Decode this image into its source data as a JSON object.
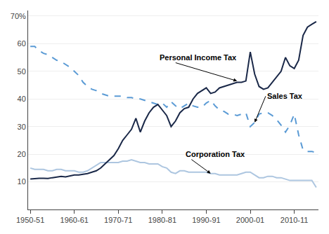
{
  "chart_data": {
    "type": "line",
    "x": [
      1950,
      1951,
      1952,
      1953,
      1954,
      1955,
      1956,
      1957,
      1958,
      1959,
      1960,
      1961,
      1962,
      1963,
      1964,
      1965,
      1966,
      1967,
      1968,
      1969,
      1970,
      1971,
      1972,
      1973,
      1974,
      1975,
      1976,
      1977,
      1978,
      1979,
      1980,
      1981,
      1982,
      1983,
      1984,
      1985,
      1986,
      1987,
      1988,
      1989,
      1990,
      1991,
      1992,
      1993,
      1994,
      1995,
      1996,
      1997,
      1998,
      1999,
      2000,
      2001,
      2002,
      2003,
      2004,
      2005,
      2006,
      2007,
      2008,
      2009,
      2010,
      2011,
      2012,
      2013,
      2014,
      2015
    ],
    "xlim": [
      1949.5,
      2015.5
    ],
    "xticks": [
      {
        "value": 1950,
        "label": "1950-51"
      },
      {
        "value": 1960,
        "label": "1960-61"
      },
      {
        "value": 1970,
        "label": "1970-71"
      },
      {
        "value": 1980,
        "label": "1980-81"
      },
      {
        "value": 1990,
        "label": "1990-91"
      },
      {
        "value": 2000,
        "label": "2000-01"
      },
      {
        "value": 2010,
        "label": "2010-11"
      }
    ],
    "ylim": [
      0,
      72
    ],
    "yticks": [
      10,
      20,
      30,
      40,
      50,
      60,
      {
        "value": 70,
        "label": "70%"
      }
    ],
    "grid": true,
    "series": [
      {
        "color": "#adc6e0",
        "line_style": "solid",
        "values": [
          15.0,
          14.5,
          14.5,
          14.5,
          14.0,
          14.0,
          14.5,
          14.5,
          14.0,
          14.0,
          14.0,
          13.5,
          13.5,
          14.0,
          15.0,
          16.0,
          17.0,
          17.0,
          17.0,
          17.0,
          17.0,
          17.5,
          17.5,
          18.0,
          17.5,
          17.0,
          17.0,
          16.5,
          16.5,
          16.5,
          15.5,
          15.0,
          13.5,
          13.0,
          14.0,
          14.0,
          13.5,
          13.5,
          13.5,
          13.5,
          13.5,
          13.0,
          13.0,
          12.5,
          12.5,
          12.5,
          12.5,
          12.5,
          13.0,
          13.5,
          13.5,
          12.5,
          11.5,
          11.5,
          12.0,
          12.0,
          11.5,
          11.5,
          11.0,
          10.5,
          10.5,
          10.5,
          10.5,
          10.5,
          10.5,
          8.0
        ]
      },
      {
        "color": "#5b9bd5",
        "line_style": "dashed",
        "values": [
          59.0,
          59.0,
          57.5,
          56.5,
          56.0,
          55.0,
          54.0,
          53.5,
          52.5,
          51.5,
          50.0,
          48.5,
          46.0,
          44.5,
          43.5,
          43.0,
          42.0,
          41.5,
          41.0,
          41.0,
          41.0,
          41.0,
          40.5,
          40.5,
          40.0,
          40.0,
          39.5,
          39.0,
          38.5,
          38.0,
          38.5,
          37.0,
          39.0,
          37.5,
          36.5,
          37.5,
          38.5,
          37.5,
          37.0,
          37.0,
          38.5,
          39.5,
          37.5,
          36.0,
          35.5,
          34.5,
          34.5,
          34.0,
          34.5,
          35.0,
          30.0,
          31.5,
          34.5,
          35.0,
          35.0,
          34.0,
          32.5,
          30.5,
          28.0,
          30.5,
          34.5,
          27.0,
          21.5,
          21.0,
          21.0,
          20.5
        ]
      },
      {
        "color": "#1a2848",
        "line_style": "solid",
        "values": [
          11.0,
          11.2,
          11.3,
          11.3,
          11.2,
          11.5,
          11.8,
          12.0,
          11.8,
          12.2,
          12.5,
          12.5,
          12.8,
          13.0,
          13.5,
          14.0,
          15.0,
          16.5,
          18.0,
          19.5,
          22.0,
          25.0,
          27.0,
          29.0,
          33.0,
          28.0,
          32.0,
          35.0,
          37.0,
          38.0,
          36.0,
          34.0,
          30.0,
          32.0,
          35.0,
          36.5,
          37.0,
          40.0,
          42.0,
          43.0,
          44.0,
          42.0,
          42.5,
          44.0,
          44.5,
          45.0,
          45.5,
          46.0,
          46.0,
          46.5,
          57.0,
          49.0,
          44.5,
          43.5,
          44.0,
          46.0,
          48.0,
          50.0,
          55.0,
          52.0,
          51.0,
          54.0,
          63.0,
          66.0,
          67.0,
          68.0
        ]
      }
    ],
    "annotations": [
      {
        "text": "Personal Income Tax",
        "x": 1997,
        "y": 46.5,
        "text_x": 1979,
        "text_y": 55
      },
      {
        "text": "Sales Tax",
        "x": 2001,
        "y": 31.5,
        "text_x": 2003.5,
        "text_y": 41
      },
      {
        "text": "Corporation Tax",
        "x": 1991,
        "y": 13,
        "text_x": 1985,
        "text_y": 20
      }
    ]
  }
}
